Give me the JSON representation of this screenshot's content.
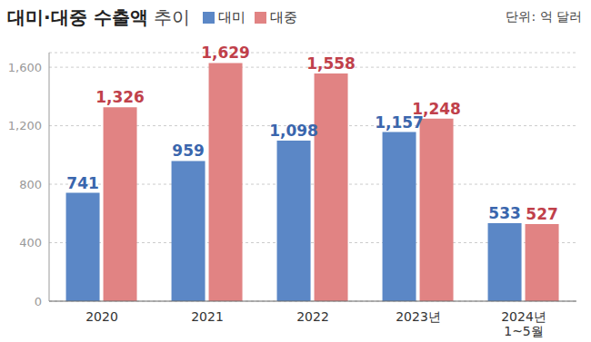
{
  "chart_data": {
    "type": "bar",
    "title": "대미·대중 수출액 추이",
    "subtitle": "단위: 억 달러",
    "categories": [
      "2020",
      "2021",
      "2022",
      "2023년",
      "2024년 1~5월"
    ],
    "series": [
      {
        "name": "대미",
        "color": "#5b87c6",
        "values": [
          741,
          959,
          1098,
          1157,
          533
        ],
        "value_labels": [
          "741",
          "959",
          "1,098",
          "1,157",
          "533"
        ]
      },
      {
        "name": "대중",
        "color": "#e18383",
        "values": [
          1326,
          1629,
          1558,
          1248,
          527
        ],
        "value_labels": [
          "1,326",
          "1,629",
          "1,558",
          "1,248",
          "527"
        ]
      }
    ],
    "ylim": [
      0,
      1700
    ],
    "yticks": [
      0,
      400,
      800,
      {
        "value": 1200,
        "label": "1,200"
      },
      {
        "value": 1600,
        "label": "1,600"
      }
    ],
    "grid": true,
    "legend": "top",
    "data_labels": true
  }
}
